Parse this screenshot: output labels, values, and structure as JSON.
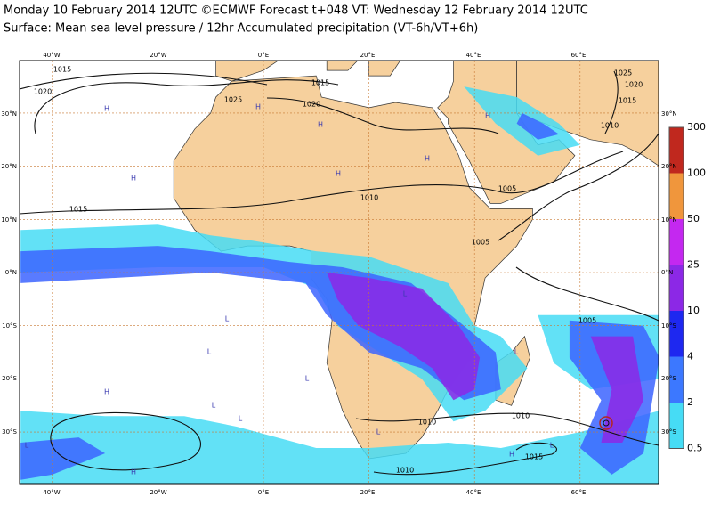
{
  "header": {
    "line1": "Monday 10 February 2014 12UTC ©ECMWF Forecast t+048 VT: Wednesday 12 February 2014 12UTC",
    "line2": "Surface: Mean sea level pressure / 12hr Accumulated precipitation (VT-6h/VT+6h)"
  },
  "map": {
    "top_lon_labels": [
      "40°W",
      "20°W",
      "0°E",
      "20°E",
      "40°E",
      "60°E"
    ],
    "bottom_lon_labels": [
      "40°W",
      "20°W",
      "0°E",
      "20°E",
      "40°E",
      "60°E"
    ],
    "left_lat_labels": [
      "30°N",
      "20°N",
      "10°N",
      "0°N",
      "10°S",
      "20°S",
      "30°S"
    ],
    "right_lat_labels": [
      "30°N",
      "20°N",
      "10°N",
      "0°N",
      "10°S",
      "20°S",
      "30°S"
    ],
    "isobar_labels": [
      "1015",
      "1020",
      "1025",
      "1020",
      "1015",
      "1015",
      "1010",
      "1005",
      "1005",
      "1005",
      "1010",
      "1010",
      "1015",
      "1010",
      "1025",
      "1020",
      "1015",
      "1010"
    ],
    "pressure_centers": [
      "H",
      "H",
      "H",
      "H",
      "H",
      "H",
      "H",
      "L",
      "L",
      "L",
      "L",
      "L",
      "L",
      "H",
      "L",
      "H",
      "L",
      "H",
      "L",
      "L"
    ]
  },
  "legend": {
    "labels": [
      "300",
      "100",
      "50",
      "25",
      "10",
      "4",
      "2",
      "0.5"
    ]
  }
}
